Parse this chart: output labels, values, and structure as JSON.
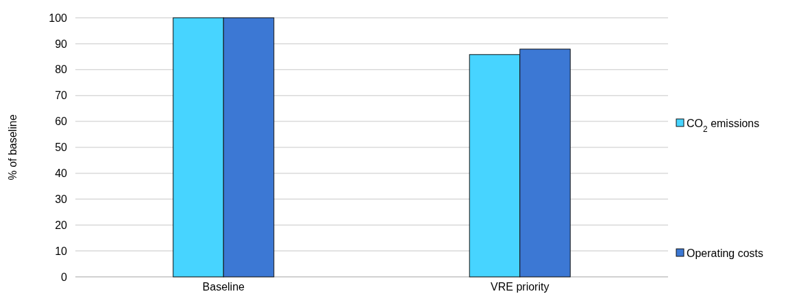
{
  "chart_data": {
    "type": "bar",
    "ylabel": "% of baseline",
    "categories": [
      "Baseline",
      "VRE priority"
    ],
    "series": [
      {
        "name": "CO$_{2}$ emissions",
        "color": "#47d4ff",
        "values": [
          100,
          85.8
        ]
      },
      {
        "name": "Operating costs",
        "color": "#3c78d4",
        "values": [
          100,
          87.9
        ]
      }
    ],
    "ylim": [
      0,
      100
    ],
    "yticks": [
      0,
      10,
      20,
      30,
      40,
      50,
      60,
      70,
      80,
      90,
      100
    ],
    "grid": "y",
    "legend": "right"
  }
}
